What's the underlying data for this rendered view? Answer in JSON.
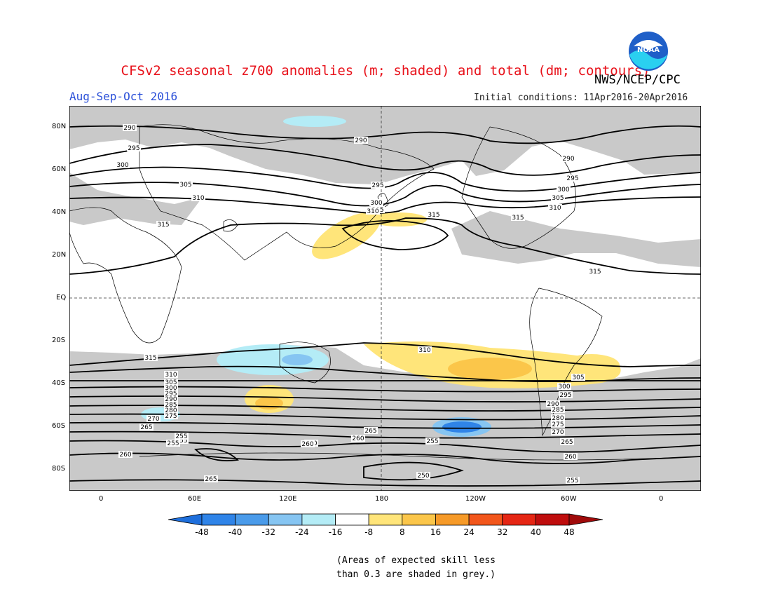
{
  "title": "CFSv2 seasonal z700 anomalies (m; shaded) and total (dm; contours)",
  "season": "Aug-Sep-Oct 2016",
  "agency": "NWS/NCEP/CPC",
  "initial_conditions": "Initial conditions: 11Apr2016-20Apr2016",
  "logo_text": "NOAA",
  "lat_labels": [
    "80N",
    "60N",
    "40N",
    "20N",
    "EQ",
    "20S",
    "40S",
    "60S",
    "80S"
  ],
  "lon_labels": [
    "0",
    "60E",
    "120E",
    "180",
    "120W",
    "60W",
    "0"
  ],
  "colorbar": {
    "ticks": [
      "-48",
      "-40",
      "-32",
      "-24",
      "-16",
      "-8",
      "8",
      "16",
      "24",
      "32",
      "40",
      "48"
    ],
    "colors": [
      "#1e6fdc",
      "#2f84e8",
      "#4a9bea",
      "#86c5f2",
      "#b4ecf6",
      "#ffffff",
      "#ffe57a",
      "#fbc64a",
      "#f69a28",
      "#f2561b",
      "#e52614",
      "#bf0d0d",
      "#a00a0a"
    ]
  },
  "note_line1": "(Areas of expected skill less",
  "note_line2": "than 0.3 are shaded in grey.)",
  "contour_labels": [
    {
      "text": "290"
    },
    {
      "text": "295"
    },
    {
      "text": "300"
    },
    {
      "text": "305"
    },
    {
      "text": "310"
    },
    {
      "text": "315"
    },
    {
      "text": "290"
    },
    {
      "text": "295"
    },
    {
      "text": "300"
    },
    {
      "text": "305"
    },
    {
      "text": "310"
    },
    {
      "text": "315"
    },
    {
      "text": "315"
    },
    {
      "text": "290"
    },
    {
      "text": "295"
    },
    {
      "text": "300"
    },
    {
      "text": "305"
    },
    {
      "text": "310"
    },
    {
      "text": "315"
    },
    {
      "text": "315"
    },
    {
      "text": "310"
    },
    {
      "text": "305"
    },
    {
      "text": "300"
    },
    {
      "text": "295"
    },
    {
      "text": "290"
    },
    {
      "text": "285"
    },
    {
      "text": "280"
    },
    {
      "text": "275"
    },
    {
      "text": "270"
    },
    {
      "text": "265"
    },
    {
      "text": "260"
    },
    {
      "text": "255"
    },
    {
      "text": "250"
    },
    {
      "text": "310"
    },
    {
      "text": "305"
    },
    {
      "text": "300"
    },
    {
      "text": "295"
    },
    {
      "text": "290"
    },
    {
      "text": "285"
    },
    {
      "text": "280"
    },
    {
      "text": "275"
    },
    {
      "text": "270"
    },
    {
      "text": "265"
    },
    {
      "text": "260"
    },
    {
      "text": "255"
    },
    {
      "text": "255"
    },
    {
      "text": "260"
    },
    {
      "text": "265"
    },
    {
      "text": "255"
    },
    {
      "text": "260"
    },
    {
      "text": "250"
    },
    {
      "text": "255"
    },
    {
      "text": "260"
    },
    {
      "text": "255"
    },
    {
      "text": "265"
    },
    {
      "text": "260"
    }
  ]
}
